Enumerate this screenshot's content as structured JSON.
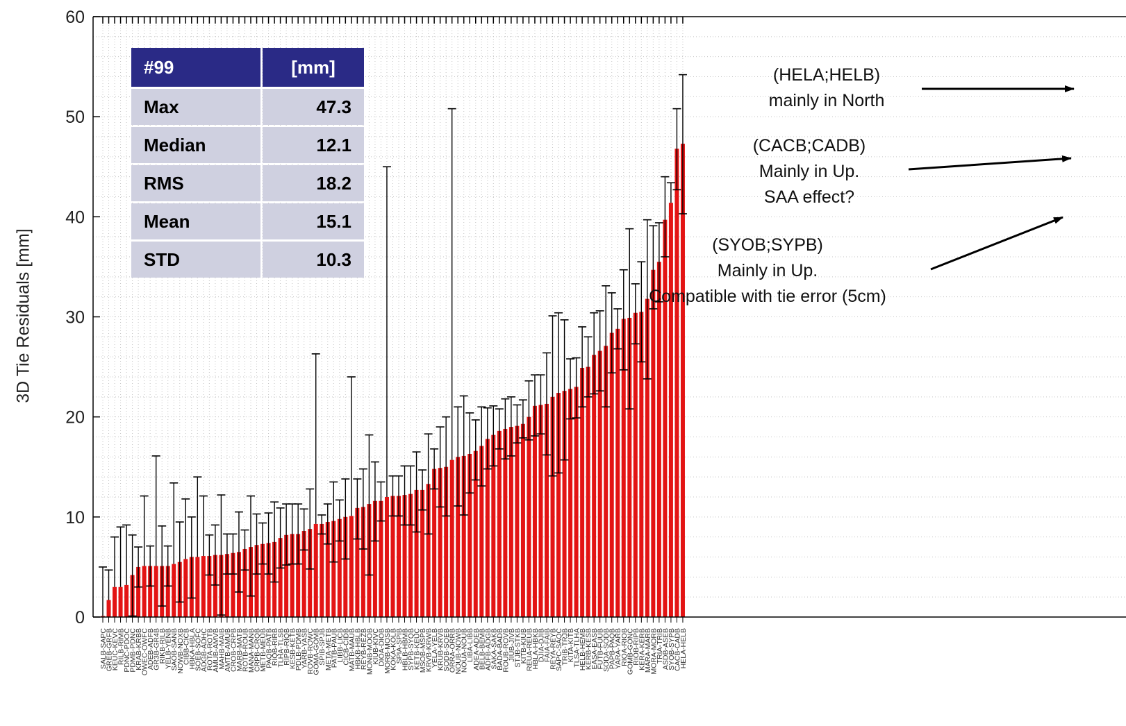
{
  "chart_data": {
    "type": "bar",
    "ylabel": "3D Tie Residuals [mm]",
    "ylim": [
      0,
      60
    ],
    "yticks": [
      0,
      10,
      20,
      30,
      40,
      50,
      60
    ],
    "grid": true,
    "bar_color": "#e31414",
    "categories": [
      "SALB-SAPC",
      "GREB-GRFB",
      "KEUC-KEVC",
      "RILB-RIMB",
      "PDNC-PDOC",
      "PDMB-PDNC",
      "KRAB-KRBB",
      "OWEC-OWFC",
      "ADEB-ADFB",
      "GR3B-GR4B",
      "RIKB-RILB",
      "YELB-YENB",
      "SAOB-SANB",
      "NOWB-NOXB",
      "CIBB-CICB",
      "HBKA-HBLA",
      "SOEB-SOFC",
      "ADGB-ADHC",
      "ROTA-ROTB",
      "AMUB-AMVB",
      "MAHB-MAIB",
      "AMTB-AMUB",
      "CROB-CRPB",
      "MARB-MATB",
      "ROTB-ROUB",
      "MANA-MANB",
      "CRPB-CRQB",
      "METB-MEUB",
      "PAQB-PATB",
      "RIQB-RIRB",
      "TLHA-TLSB",
      "RIPB-RIQB",
      "KESB-KETB",
      "PDLB-PDMB",
      "YARB-YASB",
      "ROVB-ROWC",
      "GOMA-GOMB",
      "SPIB-SPJB",
      "META-METB",
      "PATB-PAUB",
      "LIBB-LICB",
      "CICB-CIDB",
      "MATB-MAUB",
      "HBKB-HBLB",
      "REYB-REZB",
      "MONB-MOOB",
      "KIUB-KIVC",
      "DIOA-DIOB",
      "MORB-MOSB",
      "KOKA-KOLB",
      "SPIA-SPIB",
      "HBLB-HBMB",
      "SYPB-SYQB",
      "KETB-KEUC",
      "MSOB-MSPB",
      "KRVB-KRWB",
      "YELA-YELB",
      "KRUB-KRVB",
      "SODB-SOEB",
      "ORRA-ORRB",
      "NOUB-NOWB",
      "NOUA-NOUB",
      "LIBA-LIBB",
      "ADEA-ADEB",
      "BELB-BEMB",
      "ADFB-ADGB",
      "SAKA-SAKB",
      "BADA-BADB",
      "ROUB-ROVB",
      "JIUB-JIVB",
      "STJB-STKB",
      "KITB-KIUB",
      "REUA-REUB",
      "HBLA-HBKB",
      "DJIA-DJIB",
      "FAIA-FAIB",
      "REYA-REYB",
      "SAPC-SAQC",
      "TRIB-TRJB",
      "KITA-KITB",
      "TLSA-TLHA",
      "HELB-HEMB",
      "KERB-KESB",
      "EASA-EASB",
      "FUTB-FUUB",
      "SODA-SODB",
      "PAPB-PAQB",
      "YARA-YARB",
      "RIOA-RIOB",
      "GOMB-GONC",
      "RIOB-RIPB",
      "KERA-KERB",
      "MARA-MARB",
      "MORA-MORB",
      "TRIA-TRIB",
      "ASDB-ASEB",
      "SYOB-SYPB",
      "CACB-CADB",
      "HELA-HELB"
    ],
    "values": [
      0.1,
      1.7,
      3.0,
      3.0,
      3.2,
      4.2,
      5.0,
      5.1,
      5.1,
      5.1,
      5.1,
      5.1,
      5.3,
      5.5,
      5.8,
      6.0,
      6.0,
      6.1,
      6.1,
      6.2,
      6.2,
      6.3,
      6.4,
      6.5,
      6.8,
      7.0,
      7.2,
      7.3,
      7.4,
      7.5,
      7.9,
      8.2,
      8.3,
      8.3,
      8.6,
      8.8,
      9.3,
      9.3,
      9.5,
      9.6,
      9.8,
      10.0,
      10.1,
      10.9,
      11.0,
      11.3,
      11.6,
      11.6,
      12.0,
      12.1,
      12.1,
      12.2,
      12.3,
      12.7,
      12.7,
      13.3,
      14.8,
      14.9,
      15.0,
      15.7,
      16.0,
      16.1,
      16.3,
      16.6,
      17.1,
      17.8,
      18.2,
      18.6,
      18.8,
      19.0,
      19.1,
      19.3,
      20.0,
      21.1,
      21.2,
      21.3,
      22.0,
      22.4,
      22.6,
      22.8,
      23.0,
      24.9,
      25.0,
      26.2,
      26.6,
      27.1,
      28.4,
      28.8,
      29.8,
      29.9,
      30.4,
      30.5,
      31.8,
      34.7,
      35.5,
      39.7,
      41.4,
      46.8,
      47.3
    ],
    "upper_whisker": [
      5.0,
      4.7,
      8.0,
      9.0,
      9.2,
      8.2,
      7.0,
      12.1,
      7.1,
      16.1,
      9.1,
      7.1,
      13.4,
      9.5,
      11.8,
      10.0,
      14.0,
      12.1,
      8.2,
      9.2,
      12.2,
      8.3,
      8.3,
      10.5,
      8.7,
      12.1,
      10.3,
      9.4,
      10.4,
      11.5,
      10.9,
      11.3,
      11.3,
      11.3,
      10.8,
      12.8,
      26.3,
      10.2,
      11.3,
      13.5,
      11.7,
      13.8,
      24.0,
      13.8,
      14.8,
      18.2,
      15.5,
      13.5,
      45.0,
      14.1,
      14.1,
      15.1,
      15.1,
      16.5,
      14.7,
      18.3,
      16.8,
      19.0,
      20.0,
      50.8,
      21.0,
      22.1,
      20.4,
      19.7,
      21.0,
      20.9,
      21.1,
      20.8,
      21.8,
      22.0,
      21.2,
      21.7,
      23.6,
      24.2,
      24.2,
      26.4,
      30.1,
      30.4,
      29.7,
      25.8,
      25.9,
      29.0,
      28.0,
      30.4,
      30.6,
      33.1,
      32.4,
      30.8,
      34.7,
      38.8,
      33.3,
      35.5,
      39.7,
      39.1,
      39.4,
      44.0,
      43.4,
      50.8,
      54.2
    ],
    "lower_mark": [
      null,
      null,
      null,
      null,
      null,
      0.1,
      3.0,
      null,
      3.1,
      null,
      1.1,
      3.1,
      null,
      1.5,
      null,
      1.9,
      null,
      null,
      4.2,
      3.2,
      0.2,
      4.3,
      4.3,
      2.5,
      4.7,
      2.1,
      4.3,
      5.3,
      4.3,
      3.5,
      4.9,
      5.2,
      5.3,
      5.3,
      6.7,
      4.8,
      null,
      8.3,
      7.3,
      5.5,
      7.6,
      5.8,
      null,
      7.8,
      6.8,
      4.2,
      7.6,
      9.6,
      null,
      10.1,
      10.1,
      9.2,
      9.2,
      8.5,
      10.7,
      8.3,
      12.8,
      11.0,
      10.1,
      null,
      11.1,
      10.2,
      12.4,
      13.7,
      13.1,
      14.8,
      15.1,
      16.8,
      15.8,
      16.1,
      17.4,
      17.9,
      17.7,
      18.1,
      18.3,
      16.2,
      14.1,
      14.4,
      15.7,
      19.8,
      19.9,
      21.0,
      22.0,
      22.3,
      22.6,
      21.0,
      24.4,
      26.8,
      24.7,
      20.8,
      27.3,
      25.5,
      23.8,
      30.8,
      31.5,
      36.0,
      null,
      42.7,
      40.3
    ]
  },
  "stats_table": {
    "header": {
      "label": "#99",
      "unit": "[mm]"
    },
    "rows": [
      {
        "label": "Max",
        "value": "47.3"
      },
      {
        "label": "Median",
        "value": "12.1"
      },
      {
        "label": "RMS",
        "value": "18.2"
      },
      {
        "label": "Mean",
        "value": "15.1"
      },
      {
        "label": "STD",
        "value": "10.3"
      }
    ]
  },
  "annotations": {
    "hela": {
      "line1": "(HELA;HELB)",
      "line2": "mainly in North"
    },
    "cacb": {
      "line1": "(CACB;CADB)",
      "line2": "Mainly in Up.",
      "line3": "SAA effect?"
    },
    "syob": {
      "line1": "(SYOB;SYPB)",
      "line2": "Mainly in Up.",
      "line3": "Compatible with tie error (5cm)"
    }
  }
}
